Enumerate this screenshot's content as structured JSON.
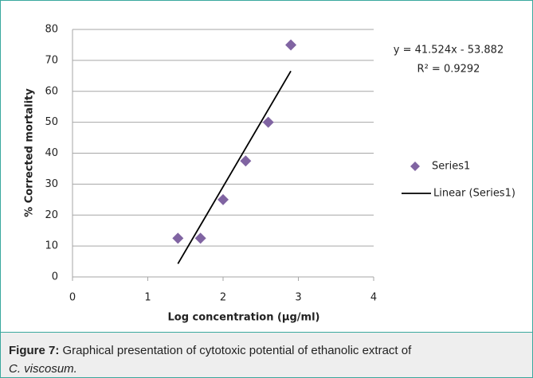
{
  "chart_data": {
    "type": "scatter",
    "x_label": "Log concentration (µg/ml)",
    "y_label": "% Corrected mortality",
    "xlim": [
      0,
      4
    ],
    "xticks": [
      0,
      1,
      2,
      3,
      4
    ],
    "ylim": [
      0,
      80
    ],
    "yticks": [
      0,
      10,
      20,
      30,
      40,
      50,
      60,
      70,
      80
    ],
    "grid": true,
    "legend": "right",
    "series": [
      {
        "name": "Series1",
        "color": "#8064a2",
        "marker": "diamond",
        "x": [
          1.4,
          1.7,
          2,
          2.3,
          2.6,
          2.9
        ],
        "values": [
          12.5,
          12.5,
          25,
          37.5,
          50,
          75
        ]
      },
      {
        "name": "Linear (Series1)",
        "color": "#000000",
        "type": "line",
        "x": [
          1.4,
          2.9
        ],
        "values": [
          4.25,
          66.54
        ]
      }
    ],
    "annotations": [
      "y = 41.524x - 53.882",
      "R² = 0.9292"
    ]
  },
  "caption": {
    "label": "Figure 7:",
    "text": "Graphical presentation of cytotoxic potential of ethanolic extract of",
    "species": "C. viscosum."
  }
}
